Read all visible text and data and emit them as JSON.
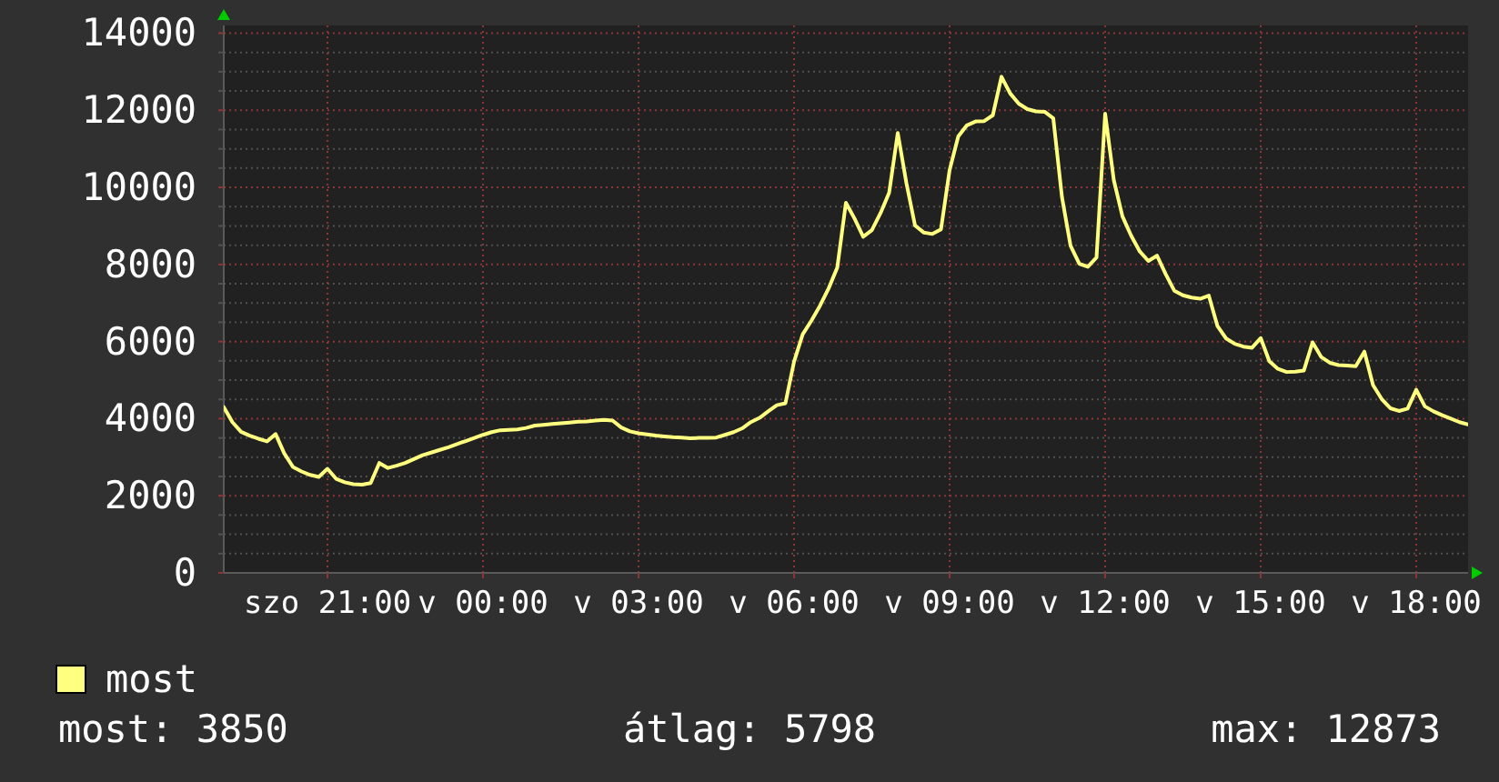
{
  "chart_data": {
    "type": "line",
    "legend": "bottom left",
    "grid": true,
    "categories": [
      null,
      null,
      null,
      null,
      null,
      null,
      null,
      null,
      null,
      null,
      null,
      null,
      "szo 21:00",
      null,
      null,
      null,
      null,
      null,
      null,
      null,
      null,
      null,
      null,
      null,
      null,
      null,
      null,
      null,
      null,
      null,
      "v 00:00",
      null,
      null,
      null,
      null,
      null,
      null,
      null,
      null,
      null,
      null,
      null,
      null,
      null,
      null,
      null,
      null,
      null,
      "v 03:00",
      null,
      null,
      null,
      null,
      null,
      null,
      null,
      null,
      null,
      null,
      null,
      null,
      null,
      null,
      null,
      null,
      null,
      "v 06:00",
      null,
      null,
      null,
      null,
      null,
      null,
      null,
      null,
      null,
      null,
      null,
      null,
      null,
      null,
      null,
      null,
      null,
      "v 09:00",
      null,
      null,
      null,
      null,
      null,
      null,
      null,
      null,
      null,
      null,
      null,
      null,
      null,
      null,
      null,
      null,
      null,
      "v 12:00",
      null,
      null,
      null,
      null,
      null,
      null,
      null,
      null,
      null,
      null,
      null,
      null,
      null,
      null,
      null,
      null,
      null,
      "v 15:00",
      null,
      null,
      null,
      null,
      null,
      null,
      null,
      null,
      null,
      null,
      null,
      null,
      null,
      null,
      null,
      null,
      null,
      "v 18:00",
      null,
      null,
      null,
      null,
      null,
      null
    ],
    "ylim": [
      0,
      14200
    ],
    "yticks": [
      0,
      {
        "value": 500,
        "label": null
      },
      {
        "value": 1000,
        "label": null
      },
      {
        "value": 1500,
        "label": null
      },
      2000,
      {
        "value": 2500,
        "label": null
      },
      {
        "value": 3000,
        "label": null
      },
      {
        "value": 3500,
        "label": null
      },
      4000,
      {
        "value": 4500,
        "label": null
      },
      {
        "value": 5000,
        "label": null
      },
      {
        "value": 5500,
        "label": null
      },
      6000,
      {
        "value": 6500,
        "label": null
      },
      {
        "value": 7000,
        "label": null
      },
      {
        "value": 7500,
        "label": null
      },
      8000,
      {
        "value": 8500,
        "label": null
      },
      {
        "value": 9000,
        "label": null
      },
      {
        "value": 9500,
        "label": null
      },
      10000,
      {
        "value": 10500,
        "label": null
      },
      {
        "value": 11000,
        "label": null
      },
      {
        "value": 11500,
        "label": null
      },
      12000,
      {
        "value": 12500,
        "label": null
      },
      {
        "value": 13000,
        "label": null
      },
      {
        "value": 13500,
        "label": null
      },
      14000
    ],
    "series": [
      {
        "name": "most",
        "color": "#ffff80",
        "values": [
          4300,
          3910,
          3660,
          3560,
          3480,
          3410,
          3600,
          3100,
          2750,
          2630,
          2540,
          2490,
          2700,
          2440,
          2350,
          2300,
          2290,
          2330,
          2850,
          2720,
          2780,
          2850,
          2950,
          3050,
          3120,
          3190,
          3260,
          3340,
          3420,
          3500,
          3580,
          3650,
          3700,
          3710,
          3720,
          3760,
          3820,
          3840,
          3860,
          3880,
          3900,
          3920,
          3930,
          3950,
          3970,
          3950,
          3770,
          3670,
          3620,
          3590,
          3560,
          3540,
          3520,
          3510,
          3490,
          3500,
          3500,
          3510,
          3580,
          3650,
          3750,
          3910,
          4020,
          4190,
          4350,
          4400,
          5480,
          6190,
          6540,
          6930,
          7380,
          7920,
          9600,
          9190,
          8720,
          8890,
          9330,
          9860,
          11410,
          10110,
          9010,
          8830,
          8790,
          8910,
          10450,
          11320,
          11610,
          11710,
          11720,
          11870,
          12870,
          12440,
          12170,
          12030,
          11970,
          11960,
          11790,
          9750,
          8480,
          8020,
          7940,
          8180,
          11910,
          10190,
          9250,
          8750,
          8340,
          8090,
          8230,
          7750,
          7320,
          7200,
          7140,
          7110,
          7190,
          6400,
          6080,
          5940,
          5870,
          5840,
          6090,
          5490,
          5290,
          5210,
          5220,
          5250,
          5980,
          5600,
          5450,
          5390,
          5380,
          5360,
          5740,
          4870,
          4510,
          4270,
          4200,
          4260,
          4750,
          4320,
          4190,
          4090,
          4000,
          3910,
          3850
        ]
      }
    ],
    "annotations": [
      "most: 3850",
      "átlag: 5798",
      "max: 12873"
    ]
  }
}
